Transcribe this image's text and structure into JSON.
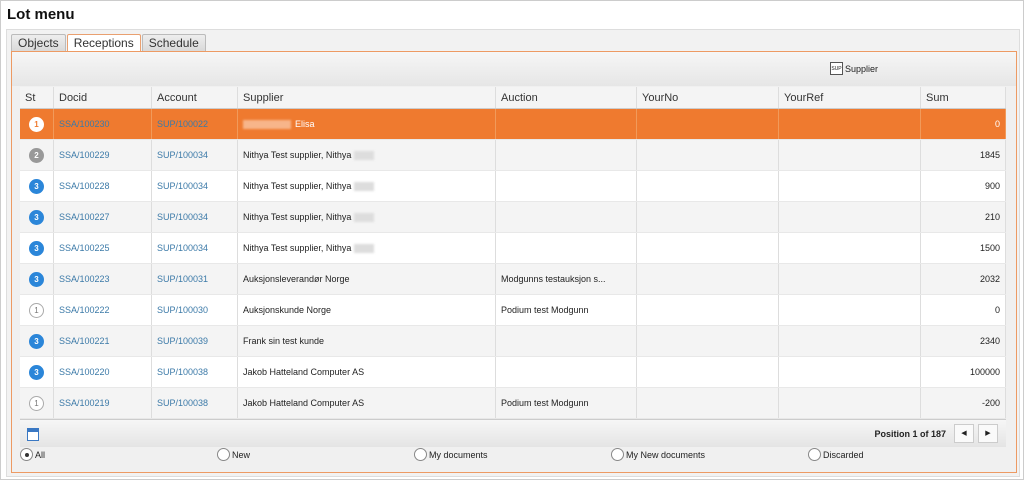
{
  "title": "Lot menu",
  "tabs": [
    {
      "label": "Objects"
    },
    {
      "label": "Receptions",
      "active": true
    },
    {
      "label": "Schedule"
    }
  ],
  "toolbar": {
    "supplier_label": "Supplier",
    "supplier_icon": "sup-document-icon"
  },
  "columns": [
    "St",
    "Docid",
    "Account",
    "Supplier",
    "Auction",
    "YourNo",
    "YourRef",
    "Sum"
  ],
  "colors": {
    "accent": "#ef7a2f",
    "status3": "#2b86d9",
    "status2": "#999999"
  },
  "rows": [
    {
      "st": "1",
      "docid": "SSA/100230",
      "account": "SUP/100022",
      "supplier": "Elisa",
      "auction": "",
      "yourno": "",
      "yourref": "",
      "sum": "0",
      "selected": true
    },
    {
      "st": "2",
      "docid": "SSA/100229",
      "account": "SUP/100034",
      "supplier": "Nithya Test supplier, Nithya",
      "auction": "",
      "yourno": "",
      "yourref": "",
      "sum": "1845"
    },
    {
      "st": "3",
      "docid": "SSA/100228",
      "account": "SUP/100034",
      "supplier": "Nithya Test supplier, Nithya",
      "auction": "",
      "yourno": "",
      "yourref": "",
      "sum": "900"
    },
    {
      "st": "3",
      "docid": "SSA/100227",
      "account": "SUP/100034",
      "supplier": "Nithya Test supplier, Nithya",
      "auction": "",
      "yourno": "",
      "yourref": "",
      "sum": "210"
    },
    {
      "st": "3",
      "docid": "SSA/100225",
      "account": "SUP/100034",
      "supplier": "Nithya Test supplier, Nithya",
      "auction": "",
      "yourno": "",
      "yourref": "",
      "sum": "1500"
    },
    {
      "st": "3",
      "docid": "SSA/100223",
      "account": "SUP/100031",
      "supplier": "Auksjonsleverandør Norge",
      "auction": "Modgunns testauksjon s...",
      "yourno": "",
      "yourref": "",
      "sum": "2032"
    },
    {
      "st": "1",
      "docid": "SSA/100222",
      "account": "SUP/100030",
      "supplier": "Auksjonskunde Norge",
      "auction": "Podium test Modgunn",
      "yourno": "",
      "yourref": "",
      "sum": "0"
    },
    {
      "st": "3",
      "docid": "SSA/100221",
      "account": "SUP/100039",
      "supplier": "Frank sin test kunde",
      "auction": "",
      "yourno": "",
      "yourref": "",
      "sum": "2340"
    },
    {
      "st": "3",
      "docid": "SSA/100220",
      "account": "SUP/100038",
      "supplier": "Jakob Hatteland Computer AS",
      "auction": "",
      "yourno": "",
      "yourref": "",
      "sum": "100000"
    },
    {
      "st": "1",
      "docid": "SSA/100219",
      "account": "SUP/100038",
      "supplier": "Jakob Hatteland Computer AS",
      "auction": "Podium test Modgunn",
      "yourno": "",
      "yourref": "",
      "sum": "-200"
    }
  ],
  "footer": {
    "position": "Position 1 of 187",
    "prev": "◀",
    "next": "▶"
  },
  "filters": [
    {
      "label": "All",
      "checked": true
    },
    {
      "label": "New"
    },
    {
      "label": "My documents"
    },
    {
      "label": "My New documents"
    },
    {
      "label": "Discarded"
    }
  ]
}
